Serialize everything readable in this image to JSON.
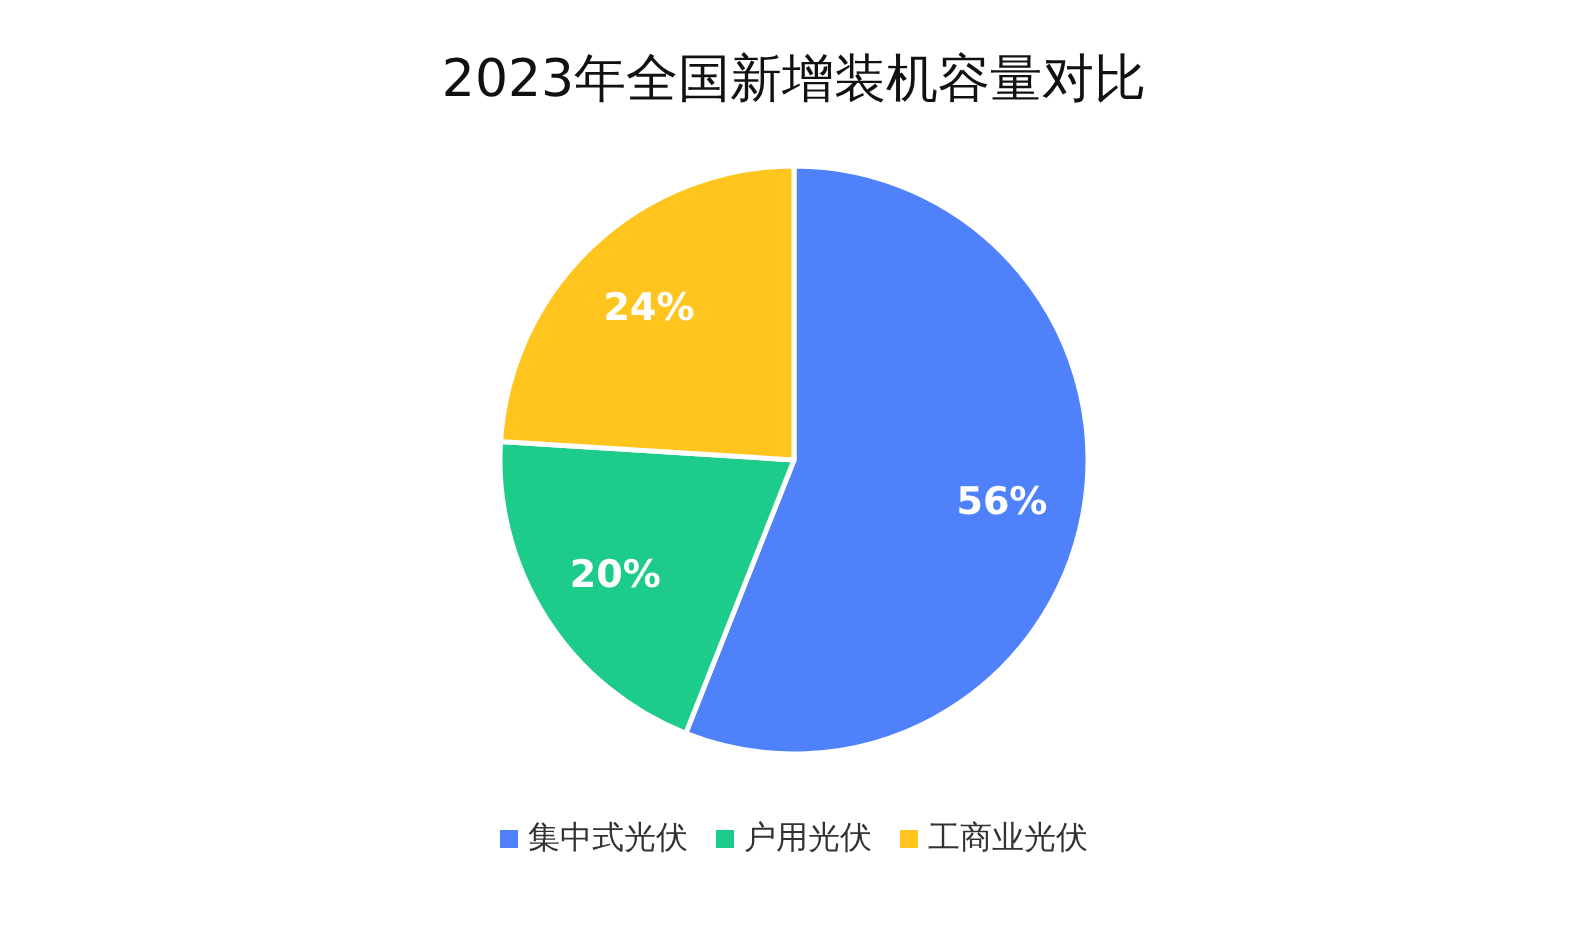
{
  "chart_data": {
    "type": "pie",
    "title": "2023年全国新增装机容量对比",
    "categories": [
      "集中式光伏",
      "户用光伏",
      "工商业光伏"
    ],
    "values": [
      56,
      20,
      24
    ],
    "colors": [
      "#4f81fa",
      "#1dcb8a",
      "#ffc51e"
    ],
    "value_labels": [
      "56%",
      "20%",
      "24%"
    ],
    "legend": "bottom"
  }
}
